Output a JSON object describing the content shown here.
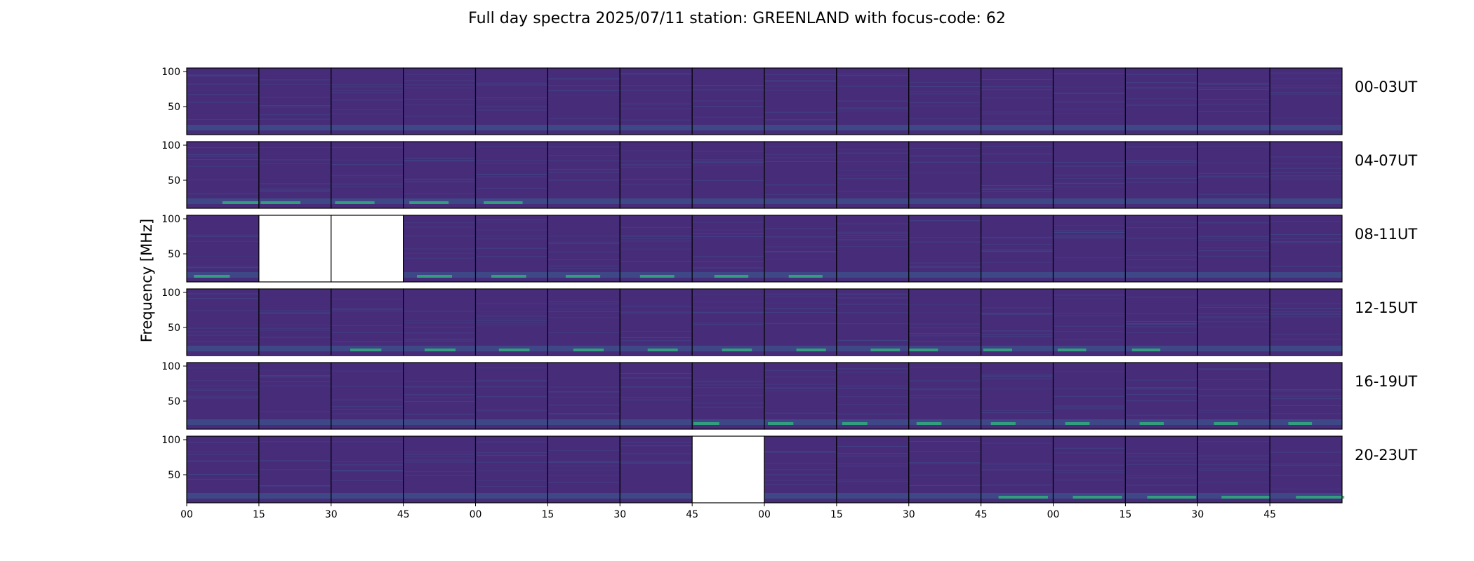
{
  "chart_data": {
    "type": "heatmap",
    "title": "Full day spectra 2025/07/11 station: GREENLAND with focus-code: 62",
    "ylabel": "Frequency [MHz]",
    "xlabel": "",
    "ylim": [
      10,
      105
    ],
    "y_ticks": [
      "100",
      "50"
    ],
    "x_tick_labels": [
      "00",
      "15",
      "30",
      "45",
      "00",
      "15",
      "30",
      "45",
      "00",
      "15",
      "30",
      "45",
      "00",
      "15",
      "30",
      "45"
    ],
    "panel_columns": 16,
    "rows": [
      {
        "label": "00-03UT",
        "missing_panels": []
      },
      {
        "label": "04-07UT",
        "missing_panels": []
      },
      {
        "label": "08-11UT",
        "missing_panels": [
          1,
          2
        ]
      },
      {
        "label": "12-15UT",
        "missing_panels": []
      },
      {
        "label": "16-19UT",
        "missing_panels": []
      },
      {
        "label": "20-23UT",
        "missing_panels": [
          7
        ]
      }
    ],
    "colormap": "viridis",
    "colors": {
      "background_panel": "#472c7a",
      "low_band": "#3b528b",
      "burst": "#2fb47c",
      "missing": "#ffffff"
    },
    "grid": false
  }
}
